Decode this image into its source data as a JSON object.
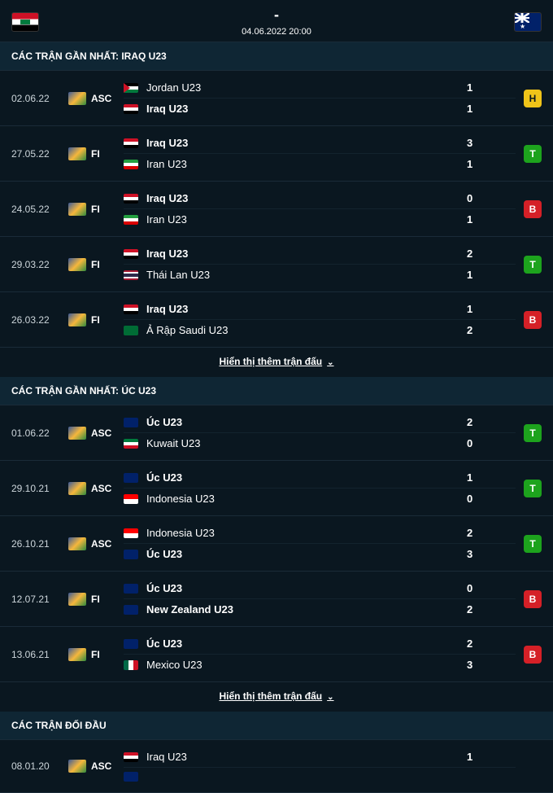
{
  "header": {
    "score_dash": "-",
    "datetime": "04.06.2022 20:00"
  },
  "sections": {
    "recent_iraq": "CÁC TRẬN GẦN NHẤT: IRAQ U23",
    "recent_aus": "CÁC TRẬN GẦN NHẤT: ÚC U23",
    "h2h": "CÁC TRẬN ĐỐI ĐẦU"
  },
  "show_more": "Hiển thị thêm trận đấu",
  "iraq_matches": [
    {
      "date": "02.06.22",
      "comp": "ASC",
      "home": "Jordan U23",
      "home_bold": false,
      "home_flag": "f-jor",
      "hs": "1",
      "away": "Iraq U23",
      "away_bold": true,
      "away_flag": "f-irq",
      "as": "1",
      "result": "H"
    },
    {
      "date": "27.05.22",
      "comp": "FI",
      "home": "Iraq U23",
      "home_bold": true,
      "home_flag": "f-irq",
      "hs": "3",
      "away": "Iran U23",
      "away_bold": false,
      "away_flag": "f-irn",
      "as": "1",
      "result": "T"
    },
    {
      "date": "24.05.22",
      "comp": "FI",
      "home": "Iraq U23",
      "home_bold": true,
      "home_flag": "f-irq",
      "hs": "0",
      "away": "Iran U23",
      "away_bold": false,
      "away_flag": "f-irn",
      "as": "1",
      "result": "B"
    },
    {
      "date": "29.03.22",
      "comp": "FI",
      "home": "Iraq U23",
      "home_bold": true,
      "home_flag": "f-irq",
      "hs": "2",
      "away": "Thái Lan U23",
      "away_bold": false,
      "away_flag": "f-tha",
      "as": "1",
      "result": "T"
    },
    {
      "date": "26.03.22",
      "comp": "FI",
      "home": "Iraq U23",
      "home_bold": true,
      "home_flag": "f-irq",
      "hs": "1",
      "away": "Ả Rập Saudi U23",
      "away_bold": false,
      "away_flag": "f-sau",
      "as": "2",
      "result": "B"
    }
  ],
  "aus_matches": [
    {
      "date": "01.06.22",
      "comp": "ASC",
      "home": "Úc U23",
      "home_bold": true,
      "home_flag": "f-aus",
      "hs": "2",
      "away": "Kuwait U23",
      "away_bold": false,
      "away_flag": "f-kuw",
      "as": "0",
      "result": "T"
    },
    {
      "date": "29.10.21",
      "comp": "ASC",
      "home": "Úc U23",
      "home_bold": true,
      "home_flag": "f-aus",
      "hs": "1",
      "away": "Indonesia U23",
      "away_bold": false,
      "away_flag": "f-idn",
      "as": "0",
      "result": "T"
    },
    {
      "date": "26.10.21",
      "comp": "ASC",
      "home": "Indonesia U23",
      "home_bold": false,
      "home_flag": "f-idn",
      "hs": "2",
      "away": "Úc U23",
      "away_bold": true,
      "away_flag": "f-aus",
      "as": "3",
      "result": "T"
    },
    {
      "date": "12.07.21",
      "comp": "FI",
      "home": "Úc U23",
      "home_bold": true,
      "home_flag": "f-aus",
      "hs": "0",
      "away": "New Zealand U23",
      "away_bold": true,
      "away_flag": "f-nzl",
      "as": "2",
      "result": "B"
    },
    {
      "date": "13.06.21",
      "comp": "FI",
      "home": "Úc U23",
      "home_bold": true,
      "home_flag": "f-aus",
      "hs": "2",
      "away": "Mexico U23",
      "away_bold": false,
      "away_flag": "f-mex",
      "as": "3",
      "result": "B"
    }
  ],
  "h2h_matches": [
    {
      "date": "08.01.20",
      "comp": "ASC",
      "home": "Iraq U23",
      "home_bold": false,
      "home_flag": "f-irq",
      "hs": "1",
      "away": "",
      "away_bold": false,
      "away_flag": "f-aus",
      "as": "",
      "result": ""
    }
  ]
}
